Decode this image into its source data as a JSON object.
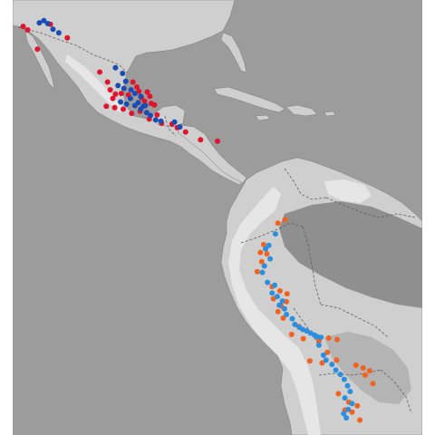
{
  "map": {
    "colors": {
      "ocean": "#9c9c9c",
      "land": "#cfcfcf",
      "land_dark": "#8f8f8f",
      "land_mid": "#b4b4b4",
      "land_light": "#e6e6e6",
      "border": "#5f5f5f",
      "coast": "#7a7a7a"
    },
    "series": [
      {
        "color": "#e0142d",
        "points": [
          [
            -116.4,
            30.3
          ],
          [
            -115.7,
            29.8
          ],
          [
            -112.2,
            30.6
          ],
          [
            -109.6,
            28.7
          ],
          [
            -114.2,
            27.1
          ],
          [
            -104.6,
            23.9
          ],
          [
            -103.4,
            22.5
          ],
          [
            -103.0,
            21.4
          ],
          [
            -102.6,
            20.2
          ],
          [
            -102.2,
            20.8
          ],
          [
            -101.3,
            20.9
          ],
          [
            -100.2,
            20.7
          ],
          [
            -99.5,
            22.5
          ],
          [
            -98.9,
            21.8
          ],
          [
            -98.6,
            21.2
          ],
          [
            -98.2,
            20.3
          ],
          [
            -97.7,
            19.8
          ],
          [
            -97.3,
            21.1
          ],
          [
            -96.9,
            20.5
          ],
          [
            -96.2,
            19.3
          ],
          [
            -103.6,
            19.1
          ],
          [
            -102.3,
            18.9
          ],
          [
            -101.0,
            18.7
          ],
          [
            -99.7,
            18.1
          ],
          [
            -98.4,
            18.4
          ],
          [
            -97.0,
            17.3
          ],
          [
            -95.8,
            17.9
          ],
          [
            -95.1,
            16.7
          ],
          [
            -93.5,
            16.6
          ],
          [
            -92.7,
            16.1
          ],
          [
            -91.4,
            15.5
          ],
          [
            -89.1,
            14.4
          ],
          [
            -86.5,
            14.2
          ],
          [
            -96.7,
            19.5
          ]
        ]
      },
      {
        "color": "#1a4db3",
        "points": [
          [
            -113.9,
            30.8
          ],
          [
            -113.2,
            31.1
          ],
          [
            -112.6,
            30.7
          ],
          [
            -111.8,
            29.9
          ],
          [
            -110.9,
            29.4
          ],
          [
            -102.2,
            24.5
          ],
          [
            -101.1,
            23.7
          ],
          [
            -100.6,
            22.6
          ],
          [
            -101.8,
            22.0
          ],
          [
            -100.9,
            21.6
          ],
          [
            -99.8,
            21.4
          ],
          [
            -99.2,
            20.9
          ],
          [
            -98.3,
            20.5
          ],
          [
            -99.9,
            20.2
          ],
          [
            -98.7,
            19.6
          ],
          [
            -97.9,
            19.1
          ],
          [
            -99.2,
            19.2
          ],
          [
            -98.3,
            18.7
          ],
          [
            -97.4,
            18.2
          ],
          [
            -96.8,
            17.8
          ],
          [
            -96.0,
            17.2
          ],
          [
            -95.2,
            17.0
          ],
          [
            -93.1,
            16.9
          ],
          [
            -92.3,
            16.2
          ],
          [
            -100.5,
            19.4
          ],
          [
            -101.4,
            19.7
          ],
          [
            -97.6,
            19.2
          ]
        ]
      },
      {
        "color": "#f2621f",
        "points": [
          [
            -77.2,
            2.7
          ],
          [
            -76.1,
            3.2
          ],
          [
            -79.4,
            -0.3
          ],
          [
            -79.9,
            -1.4
          ],
          [
            -78.9,
            -1.6
          ],
          [
            -79.7,
            -2.7
          ],
          [
            -80.4,
            -4.1
          ],
          [
            -78.1,
            -6.2
          ],
          [
            -76.9,
            -6.8
          ],
          [
            -75.8,
            -7.2
          ],
          [
            -77.9,
            -7.9
          ],
          [
            -76.7,
            -8.9
          ],
          [
            -75.9,
            -8.3
          ],
          [
            -77.2,
            -9.7
          ],
          [
            -76.4,
            -10.6
          ],
          [
            -74.0,
            -11.8
          ],
          [
            -75.1,
            -12.9
          ],
          [
            -73.3,
            -13.5
          ],
          [
            -70.9,
            -13.8
          ],
          [
            -69.4,
            -13.4
          ],
          [
            -68.1,
            -13.6
          ],
          [
            -69.6,
            -15.4
          ],
          [
            -72.3,
            -16.6
          ],
          [
            -70.4,
            -16.9
          ],
          [
            -68.2,
            -16.5
          ],
          [
            -65.2,
            -17.2
          ],
          [
            -64.1,
            -17.6
          ],
          [
            -63.1,
            -18.0
          ],
          [
            -63.8,
            -18.6
          ],
          [
            -62.6,
            -19.8
          ],
          [
            -67.9,
            -21.2
          ],
          [
            -66.3,
            -22.4
          ],
          [
            -66.9,
            -23.5
          ],
          [
            -65.8,
            -23.8
          ],
          [
            -64.6,
            -24.9
          ],
          [
            -65.0,
            -22.9
          ]
        ]
      },
      {
        "color": "#2b8fe0",
        "points": [
          [
            -77.6,
            1.2
          ],
          [
            -78.6,
            -0.4
          ],
          [
            -79.1,
            -0.9
          ],
          [
            -78.4,
            -2.3
          ],
          [
            -79.3,
            -3.3
          ],
          [
            -79.6,
            -4.2
          ],
          [
            -78.8,
            -5.6
          ],
          [
            -77.7,
            -6.0
          ],
          [
            -78.1,
            -7.1
          ],
          [
            -77.3,
            -7.6
          ],
          [
            -76.5,
            -8.2
          ],
          [
            -77.0,
            -8.8
          ],
          [
            -76.2,
            -9.3
          ],
          [
            -75.9,
            -10.1
          ],
          [
            -75.0,
            -10.7
          ],
          [
            -74.6,
            -11.5
          ],
          [
            -73.9,
            -11.9
          ],
          [
            -73.4,
            -12.2
          ],
          [
            -72.8,
            -12.4
          ],
          [
            -72.2,
            -12.7
          ],
          [
            -71.6,
            -13.0
          ],
          [
            -71.2,
            -13.2
          ],
          [
            -70.6,
            -13.3
          ],
          [
            -70.9,
            -14.4
          ],
          [
            -70.2,
            -15.8
          ],
          [
            -69.8,
            -16.5
          ],
          [
            -68.9,
            -17.1
          ],
          [
            -68.3,
            -17.9
          ],
          [
            -67.6,
            -18.5
          ],
          [
            -67.0,
            -19.2
          ],
          [
            -66.5,
            -20.1
          ],
          [
            -66.1,
            -20.9
          ],
          [
            -66.9,
            -21.8
          ],
          [
            -65.8,
            -22.6
          ],
          [
            -66.4,
            -23.4
          ],
          [
            -67.1,
            -24.0
          ],
          [
            -66.7,
            -24.6
          ]
        ]
      }
    ]
  }
}
